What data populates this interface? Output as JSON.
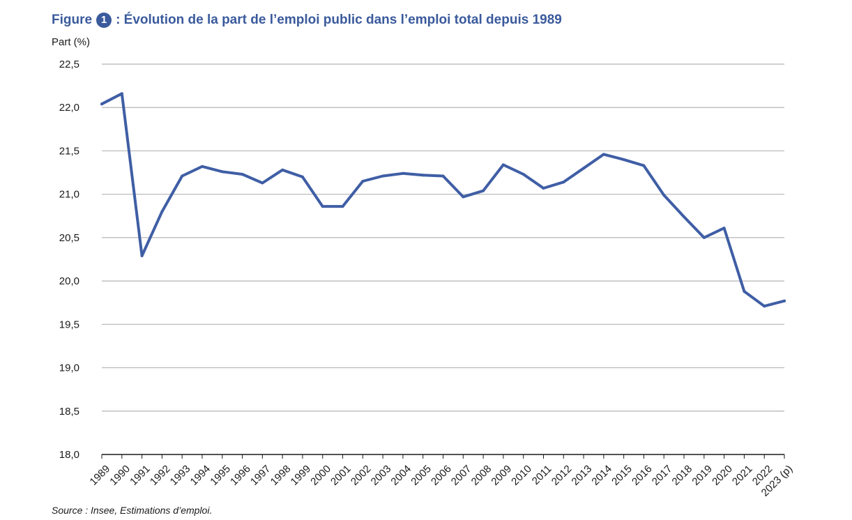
{
  "title": {
    "prefix": "Figure",
    "number": "1",
    "text": ": Évolution de la part de l’emploi public dans l’emploi total depuis 1989"
  },
  "source": "Source : Insee, Estimations d’emploi.",
  "colors": {
    "line": "#3f5ea5",
    "title": "#3a5a9c",
    "grid": "#b5b5b5"
  },
  "chart_data": {
    "type": "line",
    "title": "Évolution de la part de l’emploi public dans l’emploi total depuis 1989",
    "ylabel": "Part (%)",
    "xlabel": "",
    "ylim": [
      18.0,
      22.5
    ],
    "yticks": [
      "18,0",
      "18,5",
      "19,0",
      "19,5",
      "20,0",
      "20,5",
      "21,0",
      "21,5",
      "22,0",
      "22,5"
    ],
    "ytick_values": [
      18.0,
      18.5,
      19.0,
      19.5,
      20.0,
      20.5,
      21.0,
      21.5,
      22.0,
      22.5
    ],
    "grid": true,
    "categories": [
      "1989",
      "1990",
      "1991",
      "1992",
      "1993",
      "1994",
      "1995",
      "1996",
      "1997",
      "1998",
      "1999",
      "2000",
      "2001",
      "2002",
      "2003",
      "2004",
      "2005",
      "2006",
      "2007",
      "2008",
      "2009",
      "2010",
      "2011",
      "2012",
      "2013",
      "2014",
      "2015",
      "2016",
      "2017",
      "2018",
      "2019",
      "2020",
      "2021",
      "2022",
      "2023 (p)"
    ],
    "series": [
      {
        "values": [
          22.04,
          22.16,
          20.29,
          20.8,
          21.21,
          21.32,
          21.26,
          21.23,
          21.13,
          21.28,
          21.2,
          20.86,
          20.86,
          21.15,
          21.21,
          21.24,
          21.22,
          21.21,
          20.97,
          21.04,
          21.34,
          21.23,
          21.07,
          21.14,
          21.3,
          21.46,
          21.4,
          21.33,
          20.99,
          20.74,
          20.5,
          20.61,
          19.88,
          19.71,
          19.77
        ]
      }
    ]
  }
}
